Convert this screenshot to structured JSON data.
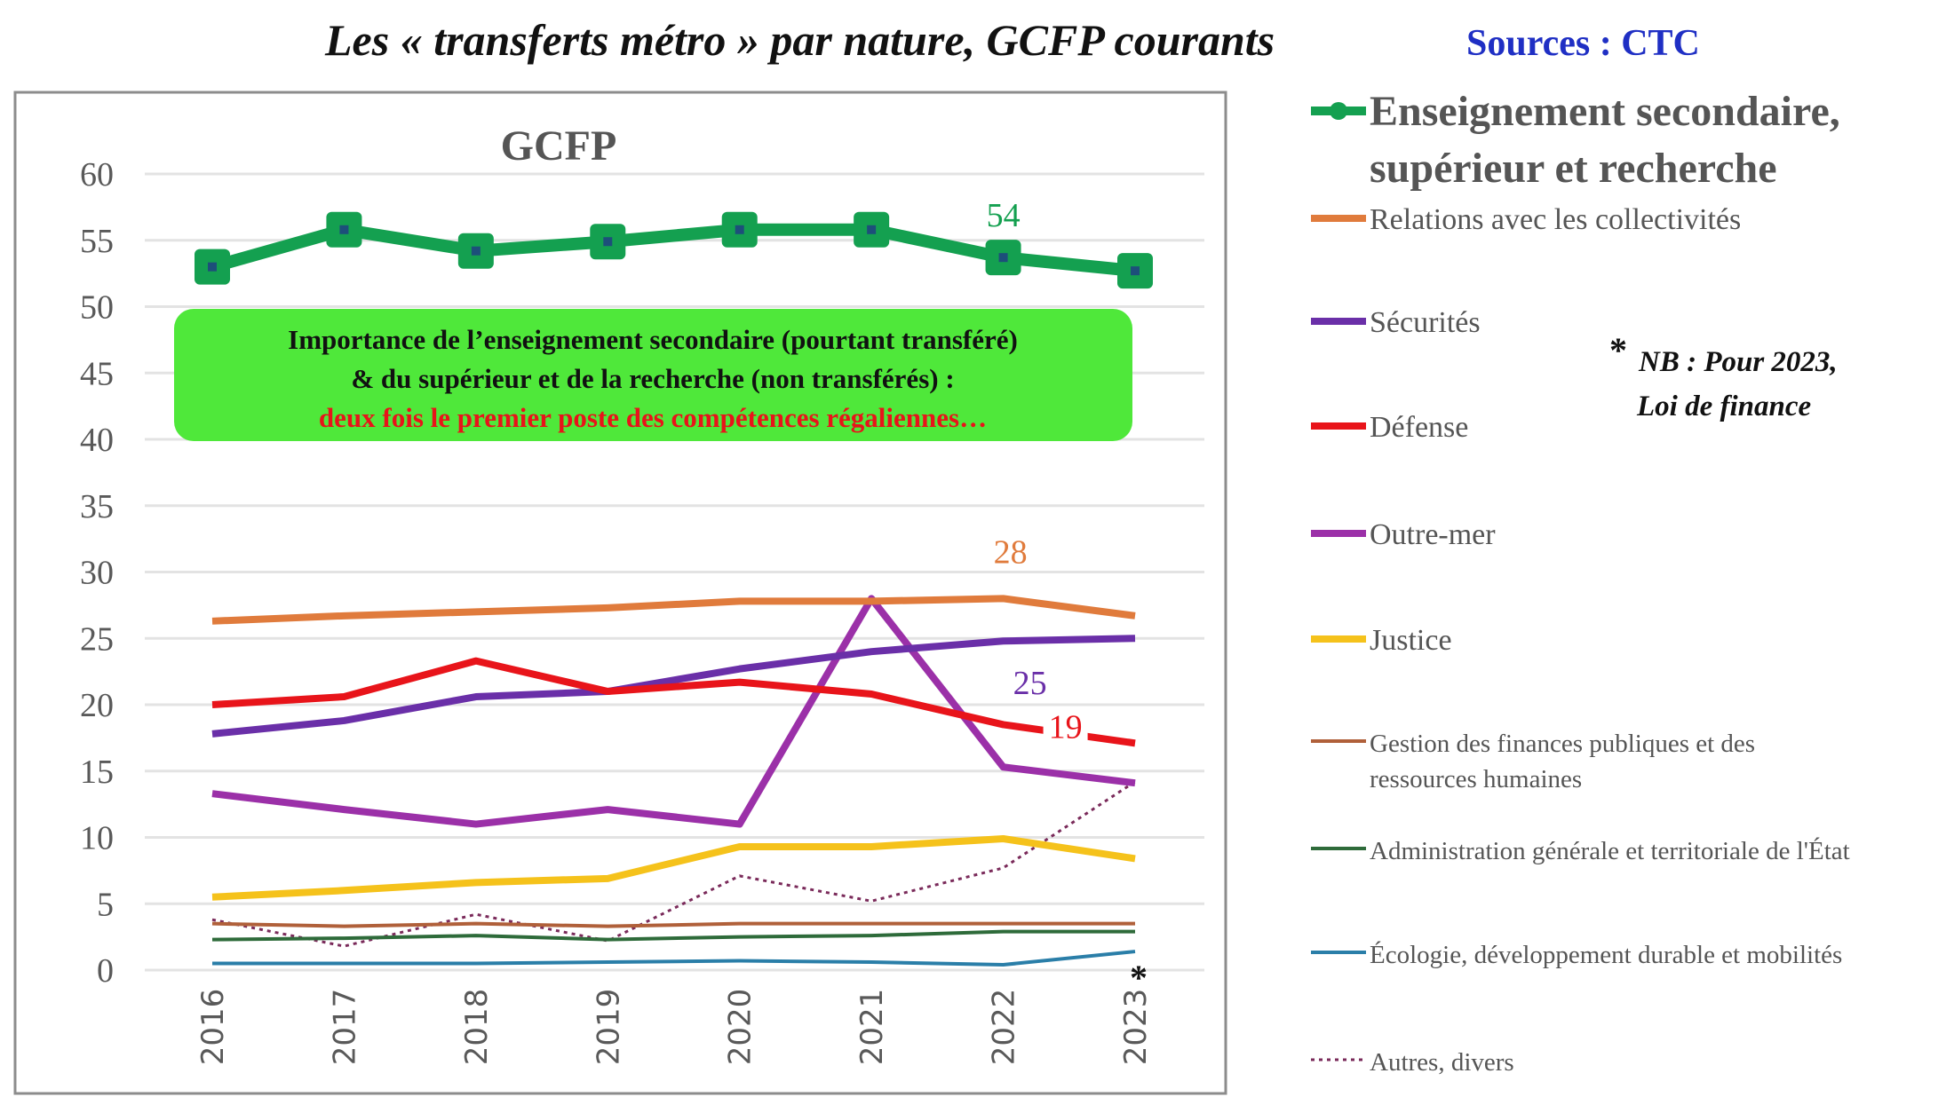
{
  "chart_data": {
    "type": "line",
    "title": "Les « transferts métro » par nature, GCFP courants",
    "source": "Sources : CTC",
    "chart_title": "GCFP",
    "xlabel": "",
    "ylabel": "",
    "ylim": [
      0,
      60
    ],
    "yticks": [
      "0",
      "5",
      "10",
      "15",
      "20",
      "25",
      "30",
      "35",
      "40",
      "45",
      "50",
      "55",
      "60"
    ],
    "categories": [
      "2016",
      "2017",
      "2018",
      "2019",
      "2020",
      "2021",
      "2022",
      "2023"
    ],
    "grid": true,
    "legend_position": "right",
    "series": [
      {
        "name": "Enseignement secondaire, supérieur et recherche",
        "color": "#14a050",
        "values": [
          53.0,
          55.8,
          54.2,
          54.9,
          55.8,
          55.8,
          53.7,
          52.7
        ]
      },
      {
        "name": "Relations avec les collectivités",
        "color": "#e07b3c",
        "values": [
          26.3,
          26.7,
          27.0,
          27.3,
          27.8,
          27.8,
          28.0,
          26.7
        ]
      },
      {
        "name": "Sécurités",
        "color": "#6a2fa8",
        "values": [
          17.8,
          18.8,
          20.6,
          21.0,
          22.7,
          24.0,
          24.8,
          25.0
        ]
      },
      {
        "name": "Défense",
        "color": "#e8141a",
        "values": [
          20.0,
          20.6,
          23.3,
          21.0,
          21.7,
          20.8,
          18.5,
          17.1
        ]
      },
      {
        "name": "Outre-mer",
        "color": "#9b30a8",
        "values": [
          13.3,
          12.1,
          11.0,
          12.1,
          11.0,
          28.0,
          15.3,
          14.1
        ]
      },
      {
        "name": "Justice",
        "color": "#f5c21b",
        "values": [
          5.5,
          6.0,
          6.6,
          6.9,
          9.3,
          9.3,
          9.9,
          8.4
        ]
      },
      {
        "name": "Gestion des finances publiques et des ressources humaines",
        "color": "#b0603a",
        "values": [
          3.5,
          3.3,
          3.5,
          3.3,
          3.5,
          3.5,
          3.5,
          3.5
        ]
      },
      {
        "name": "Administration générale et territoriale de l'État",
        "color": "#2e6b3a",
        "values": [
          2.3,
          2.4,
          2.6,
          2.3,
          2.5,
          2.6,
          2.9,
          2.9
        ]
      },
      {
        "name": "Écologie, développement durable et mobilités",
        "color": "#2a7ea8",
        "values": [
          0.5,
          0.5,
          0.5,
          0.6,
          0.7,
          0.6,
          0.4,
          1.4
        ]
      },
      {
        "name": "Autres, divers",
        "color": "#7a2a5a",
        "values": [
          3.8,
          1.8,
          4.2,
          2.2,
          7.1,
          5.2,
          7.7,
          14.2
        ]
      }
    ],
    "data_labels": [
      {
        "series": 0,
        "category": "2022",
        "text": "54"
      },
      {
        "series": 1,
        "category": "2022",
        "text": "28"
      },
      {
        "series": 2,
        "category": "2022",
        "text": "25"
      },
      {
        "series": 3,
        "category": "2022",
        "text": "19"
      }
    ],
    "annotation_box": {
      "line1": "Importance de l’enseignement secondaire (pourtant transféré)",
      "line2": "& du supérieur et de la recherche (non transférés) :",
      "line3": "deux fois le premier poste des compétences régaliennes…",
      "fill": "#4fe83a",
      "highlight_color": "#e8141a"
    },
    "asterisk": "*",
    "note": {
      "star": "*",
      "line1": "NB : Pour 2023,",
      "line2": "Loi de finance"
    },
    "legend_lines": {
      "s0": [
        "Enseignement secondaire,",
        "supérieur et recherche"
      ],
      "s6": [
        "Gestion des finances publiques et des",
        "ressources humaines"
      ]
    }
  }
}
